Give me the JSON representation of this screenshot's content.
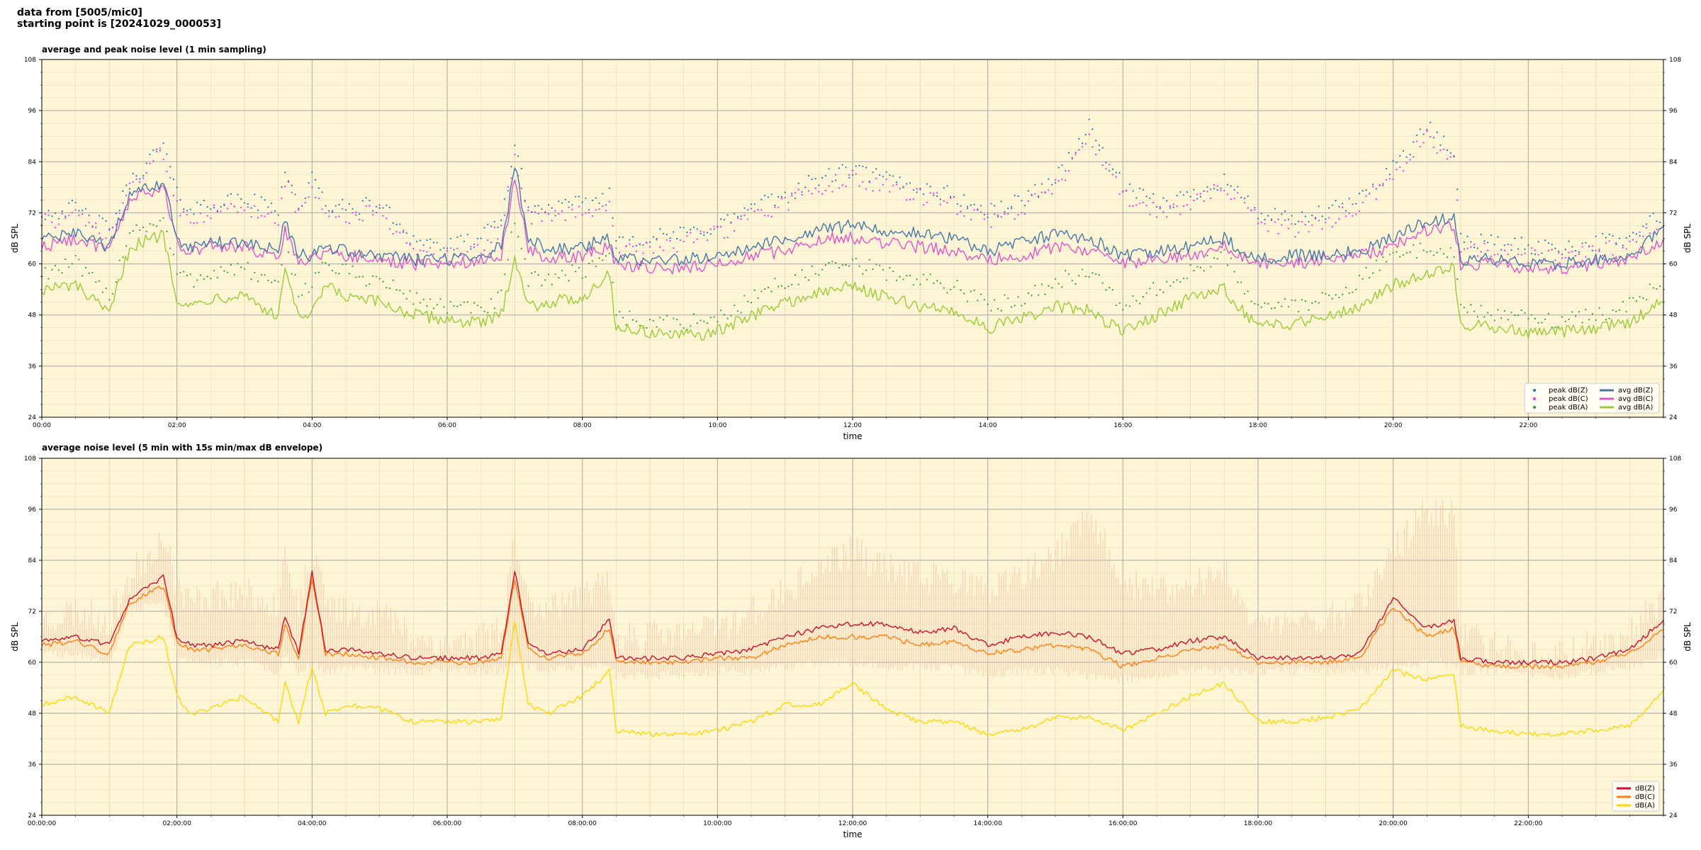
{
  "header": {
    "line1": "data from [5005/mic0]",
    "line2": "starting point is [20241029_000053]"
  },
  "colors": {
    "plot_bg": "#fdf5d6",
    "grid_major": "#a8a8a8",
    "grid_minor": "#e6d9b0",
    "peak_z": "#1f77b4",
    "peak_c": "#e532e5",
    "peak_a": "#2ca02c",
    "avg_z": "#4477aa",
    "avg_c": "#dd55cc",
    "avg_a": "#99cc33",
    "overlap": "#9977cc",
    "dbz": "#c8102e",
    "dbc": "#ff7f0e",
    "dba": "#ffd700",
    "envelope": "#f4b89a"
  },
  "chart_data": [
    {
      "type": "line",
      "title": "average and peak noise level (1 min sampling)",
      "xlabel": "time",
      "ylabel": "dB SPL",
      "ylabel_right": "dB SPL",
      "xlim": [
        0,
        24
      ],
      "ylim": [
        24,
        108
      ],
      "x_ticks": [
        "00:00",
        "02:00",
        "04:00",
        "06:00",
        "08:00",
        "10:00",
        "12:00",
        "14:00",
        "16:00",
        "18:00",
        "20:00",
        "22:00"
      ],
      "y_ticks": [
        "24",
        "36",
        "48",
        "60",
        "72",
        "84",
        "96",
        "108"
      ],
      "grid": true,
      "legend_position": "bottom-right",
      "legend": [
        {
          "label": "peak dB(Z)",
          "kind": "dot",
          "color": "peak_z"
        },
        {
          "label": "peak dB(C)",
          "kind": "dot",
          "color": "peak_c"
        },
        {
          "label": "peak dB(A)",
          "kind": "dot",
          "color": "peak_a"
        },
        {
          "label": "avg dB(Z)",
          "kind": "line",
          "color": "avg_z"
        },
        {
          "label": "avg dB(C)",
          "kind": "line",
          "color": "avg_c"
        },
        {
          "label": "avg dB(A)",
          "kind": "line",
          "color": "avg_a"
        }
      ],
      "x": [
        0,
        0.5,
        1,
        1.3,
        1.8,
        2,
        2.2,
        2.5,
        3,
        3.5,
        3.6,
        3.8,
        4,
        4.2,
        4.5,
        5,
        5.5,
        6,
        6.5,
        6.8,
        7,
        7.2,
        7.5,
        8,
        8.4,
        8.5,
        9,
        9.5,
        10,
        10.5,
        11,
        11.5,
        12,
        12.5,
        13,
        13.5,
        14,
        14.5,
        15,
        15.5,
        16,
        16.5,
        17,
        17.5,
        18,
        18.5,
        19,
        19.5,
        20,
        20.5,
        20.9,
        21,
        21.5,
        22,
        22.5,
        23,
        23.5,
        24
      ],
      "series": [
        {
          "name": "avg dB(Z)",
          "color": "avg_z",
          "values": [
            66,
            67,
            64,
            76,
            79,
            66,
            64,
            65,
            65,
            63,
            70,
            62,
            62,
            64,
            63,
            62,
            61,
            61,
            62,
            64,
            83,
            66,
            63,
            64,
            66,
            61,
            61,
            61,
            62,
            64,
            66,
            68,
            69,
            68,
            67,
            66,
            63,
            65,
            67,
            66,
            62,
            63,
            64,
            66,
            61,
            62,
            62,
            63,
            66,
            70,
            71,
            61,
            61,
            60,
            60,
            61,
            62,
            68
          ]
        },
        {
          "name": "avg dB(C)",
          "color": "avg_c",
          "values": [
            64,
            66,
            63,
            75,
            78,
            65,
            63,
            64,
            64,
            61,
            68,
            61,
            61,
            63,
            62,
            61,
            60,
            60,
            61,
            62,
            80,
            64,
            61,
            62,
            64,
            60,
            59,
            59,
            60,
            62,
            63,
            66,
            66,
            65,
            64,
            63,
            61,
            62,
            64,
            63,
            60,
            61,
            62,
            64,
            60,
            60,
            61,
            62,
            64,
            68,
            69,
            60,
            60,
            59,
            59,
            60,
            61,
            66
          ]
        },
        {
          "name": "avg dB(A)",
          "color": "avg_a",
          "values": [
            54,
            55,
            48,
            64,
            67,
            52,
            50,
            52,
            53,
            47,
            60,
            47,
            48,
            55,
            52,
            51,
            48,
            47,
            46,
            48,
            62,
            50,
            51,
            52,
            58,
            45,
            44,
            43,
            44,
            48,
            51,
            53,
            55,
            52,
            50,
            49,
            45,
            47,
            50,
            49,
            44,
            48,
            52,
            54,
            45,
            46,
            48,
            50,
            55,
            58,
            59,
            46,
            45,
            44,
            44,
            45,
            46,
            52
          ]
        },
        {
          "name": "peak dB(Z)",
          "color": "peak_z",
          "marker": "dot",
          "values": [
            72,
            73,
            68,
            79,
            88,
            76,
            73,
            74,
            75,
            73,
            83,
            73,
            80,
            74,
            73,
            74,
            66,
            64,
            66,
            70,
            88,
            73,
            73,
            74,
            76,
            66,
            66,
            67,
            69,
            73,
            76,
            80,
            82,
            80,
            78,
            76,
            72,
            75,
            80,
            92,
            78,
            74,
            76,
            80,
            72,
            70,
            72,
            75,
            83,
            92,
            86,
            66,
            65,
            64,
            64,
            65,
            66,
            72
          ]
        },
        {
          "name": "peak dB(C)",
          "color": "peak_c",
          "marker": "dot",
          "values": [
            70,
            71,
            66,
            78,
            86,
            74,
            71,
            72,
            73,
            71,
            80,
            71,
            78,
            72,
            71,
            72,
            64,
            62,
            64,
            68,
            86,
            71,
            71,
            72,
            74,
            64,
            64,
            65,
            67,
            71,
            74,
            78,
            80,
            78,
            76,
            74,
            70,
            73,
            78,
            90,
            76,
            72,
            74,
            78,
            70,
            68,
            70,
            73,
            81,
            90,
            84,
            64,
            63,
            62,
            62,
            63,
            64,
            70
          ]
        },
        {
          "name": "peak dB(A)",
          "color": "peak_a",
          "marker": "dot",
          "values": [
            58,
            60,
            52,
            68,
            70,
            58,
            56,
            58,
            59,
            54,
            66,
            53,
            56,
            60,
            58,
            56,
            52,
            50,
            49,
            52,
            70,
            56,
            57,
            58,
            63,
            48,
            46,
            46,
            47,
            52,
            56,
            58,
            60,
            58,
            56,
            55,
            50,
            52,
            56,
            58,
            50,
            54,
            58,
            62,
            50,
            50,
            52,
            56,
            62,
            64,
            62,
            50,
            48,
            47,
            47,
            48,
            50,
            56
          ]
        }
      ]
    },
    {
      "type": "line",
      "title": "average noise level (5 min with 15s min/max dB envelope)",
      "xlabel": "time",
      "ylabel": "dB SPL",
      "ylabel_right": "dB SPL",
      "xlim": [
        0,
        24
      ],
      "ylim": [
        24,
        108
      ],
      "x_ticks": [
        "00:00:00",
        "02:00:00",
        "04:00:00",
        "06:00:00",
        "08:00:00",
        "10:00:00",
        "12:00:00",
        "14:00:00",
        "16:00:00",
        "18:00:00",
        "20:00:00",
        "22:00:00"
      ],
      "y_ticks": [
        "24",
        "36",
        "48",
        "60",
        "72",
        "84",
        "96",
        "108"
      ],
      "grid": true,
      "legend_position": "bottom-right",
      "legend": [
        {
          "label": "dB(Z)",
          "kind": "line",
          "color": "dbz"
        },
        {
          "label": "dB(C)",
          "kind": "line",
          "color": "dbc"
        },
        {
          "label": "dB(A)",
          "kind": "line",
          "color": "dba"
        }
      ],
      "x": [
        0,
        0.5,
        1,
        1.3,
        1.8,
        2,
        2.2,
        2.5,
        3,
        3.5,
        3.6,
        3.8,
        4,
        4.2,
        4.5,
        5,
        5.5,
        6,
        6.5,
        6.8,
        7,
        7.2,
        7.5,
        8,
        8.4,
        8.5,
        9,
        9.5,
        10,
        10.5,
        11,
        11.5,
        12,
        12.5,
        13,
        13.5,
        14,
        14.5,
        15,
        15.5,
        16,
        16.5,
        17,
        17.5,
        18,
        18.5,
        19,
        19.5,
        20,
        20.5,
        20.9,
        21,
        21.5,
        22,
        22.5,
        23,
        23.5,
        24
      ],
      "series": [
        {
          "name": "dB(Z)",
          "color": "dbz",
          "values": [
            65,
            66,
            64,
            75,
            80,
            66,
            64,
            64,
            65,
            63,
            71,
            62,
            81,
            63,
            63,
            62,
            61,
            61,
            61,
            62,
            82,
            64,
            62,
            63,
            70,
            61,
            61,
            61,
            62,
            63,
            66,
            68,
            69,
            69,
            67,
            68,
            64,
            66,
            67,
            66,
            62,
            63,
            65,
            66,
            61,
            61,
            61,
            62,
            75,
            68,
            70,
            61,
            60,
            60,
            60,
            61,
            63,
            70
          ]
        },
        {
          "name": "dB(C)",
          "color": "dbc",
          "values": [
            64,
            65,
            62,
            74,
            78,
            65,
            63,
            63,
            64,
            62,
            69,
            61,
            80,
            62,
            62,
            61,
            60,
            60,
            60,
            61,
            80,
            63,
            61,
            62,
            68,
            60,
            60,
            60,
            61,
            61,
            64,
            66,
            66,
            66,
            64,
            65,
            62,
            63,
            64,
            63,
            59,
            61,
            63,
            64,
            60,
            60,
            60,
            61,
            73,
            66,
            68,
            60,
            59,
            59,
            59,
            60,
            62,
            68
          ]
        },
        {
          "name": "dB(A)",
          "color": "dba",
          "values": [
            50,
            52,
            48,
            64,
            66,
            52,
            48,
            49,
            52,
            46,
            55,
            46,
            59,
            48,
            50,
            49,
            46,
            46,
            46,
            47,
            70,
            50,
            48,
            52,
            58,
            44,
            43,
            43,
            44,
            46,
            50,
            50,
            55,
            49,
            46,
            46,
            43,
            44,
            47,
            47,
            44,
            48,
            52,
            55,
            46,
            46,
            47,
            49,
            58,
            56,
            57,
            45,
            44,
            43,
            43,
            44,
            45,
            53
          ]
        },
        {
          "name": "",
          "color": "envelope",
          "role": "envelope-max",
          "values": [
            70,
            72,
            70,
            80,
            90,
            78,
            74,
            76,
            76,
            74,
            88,
            72,
            86,
            74,
            72,
            72,
            66,
            64,
            66,
            68,
            90,
            74,
            74,
            74,
            80,
            66,
            66,
            67,
            68,
            72,
            76,
            82,
            86,
            82,
            80,
            80,
            76,
            80,
            85,
            94,
            80,
            76,
            78,
            82,
            68,
            70,
            70,
            74,
            86,
            96,
            94,
            66,
            64,
            62,
            62,
            64,
            66,
            76
          ]
        },
        {
          "name": "",
          "color": "envelope",
          "role": "envelope-min",
          "values": [
            62,
            62,
            60,
            72,
            74,
            61,
            60,
            60,
            60,
            58,
            62,
            58,
            60,
            58,
            59,
            58,
            58,
            58,
            58,
            58,
            60,
            59,
            58,
            59,
            60,
            57,
            57,
            57,
            58,
            58,
            59,
            60,
            60,
            59,
            59,
            59,
            57,
            58,
            58,
            57,
            56,
            57,
            58,
            58,
            58,
            58,
            58,
            58,
            59,
            60,
            60,
            58,
            58,
            57,
            57,
            58,
            59,
            62
          ]
        }
      ]
    }
  ]
}
